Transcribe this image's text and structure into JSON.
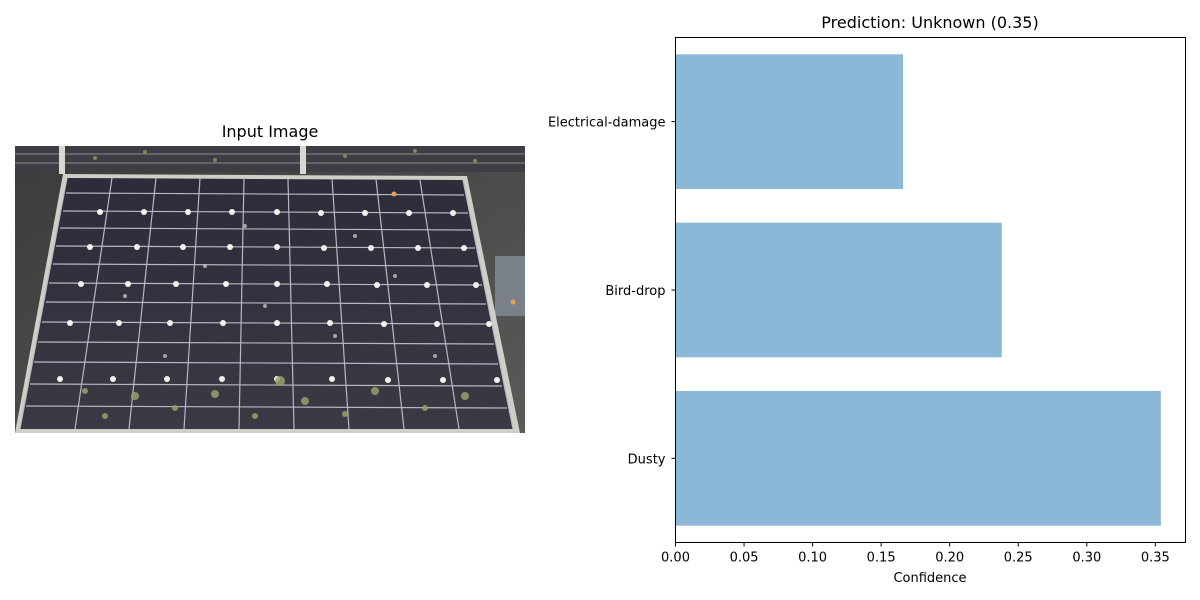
{
  "left_panel": {
    "title": "Input Image",
    "image_semantic": "solar-panel-photo"
  },
  "chart_data": {
    "type": "bar",
    "orientation": "horizontal",
    "title": "Prediction: Unknown (0.35)",
    "xlabel": "Confidence",
    "ylabel": "",
    "categories": [
      "Dusty",
      "Bird-drop",
      "Electrical-damage"
    ],
    "values": [
      0.354,
      0.238,
      0.166
    ],
    "xlim": [
      0,
      0.372
    ],
    "xticks": [
      "0.00",
      "0.05",
      "0.10",
      "0.15",
      "0.20",
      "0.25",
      "0.30",
      "0.35"
    ],
    "bar_color": "#8cb8d8",
    "grid": false,
    "legend": "none"
  }
}
